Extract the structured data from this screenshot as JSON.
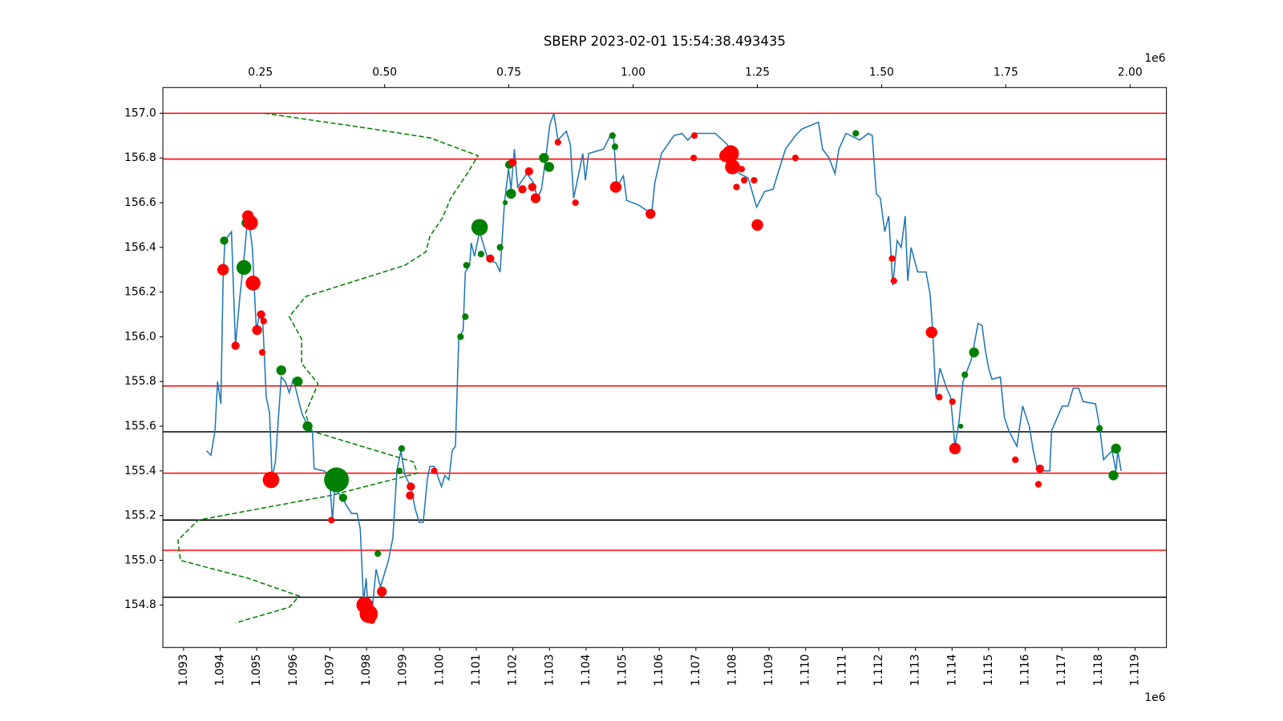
{
  "chart_data": {
    "type": "line",
    "title": "SBERP 2023-02-01 15:54:38.493435",
    "x_offset_label": "1e6",
    "x2_offset_label": "1e6",
    "xlim": [
      1092435,
      1119858
    ],
    "xticks": [
      {
        "value": 1093000,
        "label": "1.093"
      },
      {
        "value": 1094000,
        "label": "1.094"
      },
      {
        "value": 1095000,
        "label": "1.095"
      },
      {
        "value": 1096000,
        "label": "1.096"
      },
      {
        "value": 1097000,
        "label": "1.097"
      },
      {
        "value": 1098000,
        "label": "1.098"
      },
      {
        "value": 1099000,
        "label": "1.099"
      },
      {
        "value": 1100000,
        "label": "1.100"
      },
      {
        "value": 1101000,
        "label": "1.101"
      },
      {
        "value": 1102000,
        "label": "1.102"
      },
      {
        "value": 1103000,
        "label": "1.103"
      },
      {
        "value": 1104000,
        "label": "1.104"
      },
      {
        "value": 1105000,
        "label": "1.105"
      },
      {
        "value": 1106000,
        "label": "1.106"
      },
      {
        "value": 1107000,
        "label": "1.107"
      },
      {
        "value": 1108000,
        "label": "1.108"
      },
      {
        "value": 1109000,
        "label": "1.109"
      },
      {
        "value": 1110000,
        "label": "1.110"
      },
      {
        "value": 1111000,
        "label": "1.111"
      },
      {
        "value": 1112000,
        "label": "1.112"
      },
      {
        "value": 1113000,
        "label": "1.113"
      },
      {
        "value": 1114000,
        "label": "1.114"
      },
      {
        "value": 1115000,
        "label": "1.115"
      },
      {
        "value": 1116000,
        "label": "1.116"
      },
      {
        "value": 1117000,
        "label": "1.117"
      },
      {
        "value": 1118000,
        "label": "1.118"
      },
      {
        "value": 1119000,
        "label": "1.119"
      }
    ],
    "x2lim": [
      53700,
      2073200
    ],
    "x2ticks": [
      {
        "value": 250000,
        "label": "0.25"
      },
      {
        "value": 500000,
        "label": "0.50"
      },
      {
        "value": 750000,
        "label": "0.75"
      },
      {
        "value": 1000000,
        "label": "1.00"
      },
      {
        "value": 1250000,
        "label": "1.25"
      },
      {
        "value": 1500000,
        "label": "1.50"
      },
      {
        "value": 1750000,
        "label": "1.75"
      },
      {
        "value": 2000000,
        "label": "2.00"
      }
    ],
    "ylim": [
      154.61,
      157.115
    ],
    "yticks": [
      154.8,
      {
        "value": 155.0,
        "label": "155.0"
      },
      155.2,
      155.4,
      155.6,
      155.8,
      {
        "value": 156.0,
        "label": "156.0"
      },
      156.2,
      156.4,
      156.6,
      156.8,
      {
        "value": 157.0,
        "label": "157.0"
      }
    ],
    "hlines": [
      {
        "value": 157.0,
        "color": "#ff0000"
      },
      {
        "value": 156.795,
        "color": "#ff0000"
      },
      {
        "value": 155.78,
        "color": "#ff0000"
      },
      {
        "value": 155.39,
        "color": "#ff0000"
      },
      {
        "value": 155.045,
        "color": "#ff0000"
      },
      {
        "value": 155.575,
        "color": "#000000"
      },
      {
        "value": 155.18,
        "color": "#000000"
      },
      {
        "value": 154.835,
        "color": "#000000"
      }
    ],
    "x": [
      1093630,
      1093750,
      1093860,
      1093930,
      1094020,
      1094080,
      1094130,
      1094310,
      1094420,
      1094540,
      1094670,
      1094760,
      1094880,
      1094990,
      1095080,
      1095170,
      1095260,
      1095350,
      1095420,
      1095510,
      1095670,
      1095780,
      1095890,
      1096000,
      1096230,
      1096390,
      1096520,
      1096570,
      1096840,
      1096980,
      1097070,
      1097130,
      1097360,
      1097590,
      1097740,
      1097830,
      1097920,
      1097990,
      1098060,
      1098150,
      1098260,
      1098380,
      1098600,
      1098720,
      1098830,
      1098940,
      1099050,
      1099210,
      1099330,
      1099440,
      1099550,
      1099660,
      1099730,
      1099850,
      1100050,
      1100140,
      1100250,
      1100340,
      1100430,
      1100520,
      1100640,
      1100700,
      1100820,
      1100860,
      1100950,
      1101090,
      1101310,
      1101540,
      1101650,
      1101770,
      1101880,
      1101950,
      1102040,
      1102130,
      1102380,
      1102560,
      1102670,
      1102780,
      1102890,
      1103010,
      1103120,
      1103230,
      1103460,
      1103570,
      1103660,
      1103800,
      1103910,
      1103980,
      1104070,
      1104480,
      1104660,
      1104750,
      1104840,
      1105020,
      1105110,
      1105430,
      1105790,
      1105880,
      1106060,
      1106400,
      1106620,
      1106780,
      1106960,
      1107530,
      1107860,
      1108090,
      1108200,
      1108430,
      1108660,
      1108880,
      1109110,
      1109220,
      1109450,
      1109720,
      1109900,
      1110350,
      1110460,
      1110640,
      1110800,
      1110910,
      1111100,
      1111480,
      1111710,
      1111820,
      1111930,
      1112040,
      1112160,
      1112270,
      1112380,
      1112500,
      1112610,
      1112720,
      1112790,
      1112880,
      1113060,
      1113290,
      1113400,
      1113470,
      1113560,
      1113670,
      1113850,
      1113960,
      1114080,
      1114190,
      1114300,
      1114530,
      1114710,
      1114820,
      1114910,
      1115000,
      1115090,
      1115320,
      1115430,
      1115550,
      1115770,
      1115930,
      1116110,
      1116220,
      1116340,
      1116670,
      1116720,
      1117010,
      1117170,
      1117310,
      1117460,
      1117580,
      1117920,
      1118030,
      1118140,
      1118370,
      1118480,
      1118530,
      1118620
    ],
    "series": [
      {
        "color": "#1f77b4",
        "values": [
          155.49,
          155.47,
          155.58,
          155.8,
          155.7,
          156.25,
          156.43,
          156.47,
          155.96,
          156.18,
          156.38,
          156.55,
          156.4,
          156.03,
          156.1,
          156.05,
          155.73,
          155.66,
          155.37,
          155.44,
          155.82,
          155.8,
          155.75,
          155.81,
          155.66,
          155.6,
          155.58,
          155.41,
          155.4,
          155.38,
          155.18,
          155.33,
          155.27,
          155.21,
          155.21,
          155.14,
          154.81,
          154.92,
          154.73,
          154.77,
          154.96,
          154.88,
          155.0,
          155.1,
          155.4,
          155.49,
          155.38,
          155.33,
          155.23,
          155.17,
          155.17,
          155.36,
          155.42,
          155.42,
          155.33,
          155.38,
          155.36,
          155.49,
          155.51,
          155.99,
          156.03,
          156.29,
          156.32,
          156.42,
          156.36,
          156.47,
          156.35,
          156.33,
          156.29,
          156.6,
          156.75,
          156.66,
          156.84,
          156.67,
          156.73,
          156.69,
          156.62,
          156.66,
          156.79,
          156.95,
          157.0,
          156.88,
          156.92,
          156.86,
          156.62,
          156.73,
          156.82,
          156.7,
          156.82,
          156.84,
          156.9,
          156.9,
          156.67,
          156.72,
          156.61,
          156.59,
          156.55,
          156.69,
          156.82,
          156.9,
          156.91,
          156.88,
          156.91,
          156.91,
          156.86,
          156.75,
          156.73,
          156.71,
          156.58,
          156.65,
          156.66,
          156.72,
          156.84,
          156.9,
          156.93,
          156.96,
          156.84,
          156.8,
          156.73,
          156.84,
          156.91,
          156.88,
          156.91,
          156.9,
          156.64,
          156.62,
          156.47,
          156.54,
          156.23,
          156.43,
          156.4,
          156.54,
          156.25,
          156.4,
          156.29,
          156.29,
          156.19,
          156.03,
          155.73,
          155.86,
          155.77,
          155.73,
          155.51,
          155.62,
          155.8,
          155.9,
          156.06,
          156.05,
          155.94,
          155.86,
          155.81,
          155.82,
          155.64,
          155.58,
          155.51,
          155.69,
          155.6,
          155.49,
          155.4,
          155.4,
          155.58,
          155.69,
          155.69,
          155.77,
          155.77,
          155.71,
          155.7,
          155.6,
          155.45,
          155.49,
          155.4,
          155.49,
          155.4
        ]
      }
    ],
    "profile": {
      "color": "#008000",
      "axis": "x2",
      "style": "dashed",
      "x": [
        258000,
        475000,
        591000,
        688000,
        666000,
        633000,
        616000,
        591000,
        583000,
        541000,
        341000,
        308000,
        333000,
        333000,
        366000,
        341000,
        350000,
        558000,
        566000,
        391000,
        125000,
        84000,
        89000,
        225000,
        328000,
        308000,
        200000
      ],
      "values": [
        157.0,
        156.93,
        156.89,
        156.81,
        156.73,
        156.62,
        156.53,
        156.45,
        156.38,
        156.32,
        156.18,
        156.09,
        155.99,
        155.88,
        155.79,
        155.66,
        155.58,
        155.44,
        155.39,
        155.29,
        155.18,
        155.09,
        155.0,
        154.92,
        154.84,
        154.79,
        154.72
      ]
    },
    "markers": [
      {
        "color": "#008000",
        "x": [
          1094110,
          1094650,
          1094720,
          1095670,
          1096120,
          1096390,
          1097180,
          1097360,
          1098310,
          1098900,
          1098960,
          1100570,
          1100700,
          1100730,
          1101090,
          1101130,
          1101650,
          1101790,
          1101900,
          1101950,
          1102850,
          1102990,
          1104720,
          1104790,
          1111370,
          1114240,
          1114350,
          1114600,
          1118030,
          1118410,
          1118480
        ],
        "values": [
          156.43,
          156.31,
          156.51,
          155.85,
          155.8,
          155.6,
          155.36,
          155.28,
          155.03,
          155.4,
          155.5,
          156.0,
          156.09,
          156.32,
          156.49,
          156.37,
          156.4,
          156.6,
          156.77,
          156.64,
          156.8,
          156.76,
          156.9,
          156.85,
          156.91,
          155.6,
          155.83,
          155.93,
          155.59,
          155.38,
          155.5
        ],
        "sizes": [
          5,
          9,
          6,
          6,
          6,
          6,
          15,
          5,
          4,
          4,
          4,
          4,
          4,
          4,
          10,
          4,
          4,
          3,
          5,
          6,
          6,
          6,
          4,
          4,
          4,
          3,
          4,
          6,
          4,
          6,
          6
        ]
      },
      {
        "color": "#ff0000",
        "x": [
          1094080,
          1094420,
          1094760,
          1094830,
          1094900,
          1095010,
          1095120,
          1095190,
          1095150,
          1095390,
          1097040,
          1097950,
          1098060,
          1098150,
          1098420,
          1099210,
          1099190,
          1099850,
          1101380,
          1101990,
          1102260,
          1102440,
          1102530,
          1102620,
          1103230,
          1103710,
          1104810,
          1105760,
          1106940,
          1106960,
          1107820,
          1107950,
          1108000,
          1108110,
          1108250,
          1108320,
          1108590,
          1108680,
          1109720,
          1112360,
          1112410,
          1113440,
          1113650,
          1114010,
          1114080,
          1115730,
          1116360,
          1116400
        ],
        "values": [
          156.3,
          155.96,
          156.54,
          156.51,
          156.24,
          156.03,
          156.1,
          156.07,
          155.93,
          155.36,
          155.18,
          154.8,
          154.76,
          154.73,
          154.86,
          155.33,
          155.29,
          155.4,
          156.35,
          156.78,
          156.66,
          156.74,
          156.67,
          156.62,
          156.87,
          156.6,
          156.67,
          156.55,
          156.8,
          156.9,
          156.81,
          156.82,
          156.76,
          156.67,
          156.75,
          156.7,
          156.7,
          156.5,
          156.8,
          156.35,
          156.25,
          156.02,
          155.73,
          155.71,
          155.5,
          155.45,
          155.34,
          155.41
        ],
        "sizes": [
          7,
          5,
          7,
          9,
          9,
          6,
          5,
          4,
          4,
          10,
          4,
          10,
          11,
          4,
          6,
          5,
          5,
          4,
          5,
          5,
          5,
          5,
          5,
          6,
          4,
          4,
          7,
          6,
          4,
          4,
          8,
          10,
          9,
          4,
          4,
          4,
          4,
          7,
          4,
          4,
          4,
          7,
          4,
          4,
          7,
          4,
          4,
          5
        ]
      }
    ]
  }
}
